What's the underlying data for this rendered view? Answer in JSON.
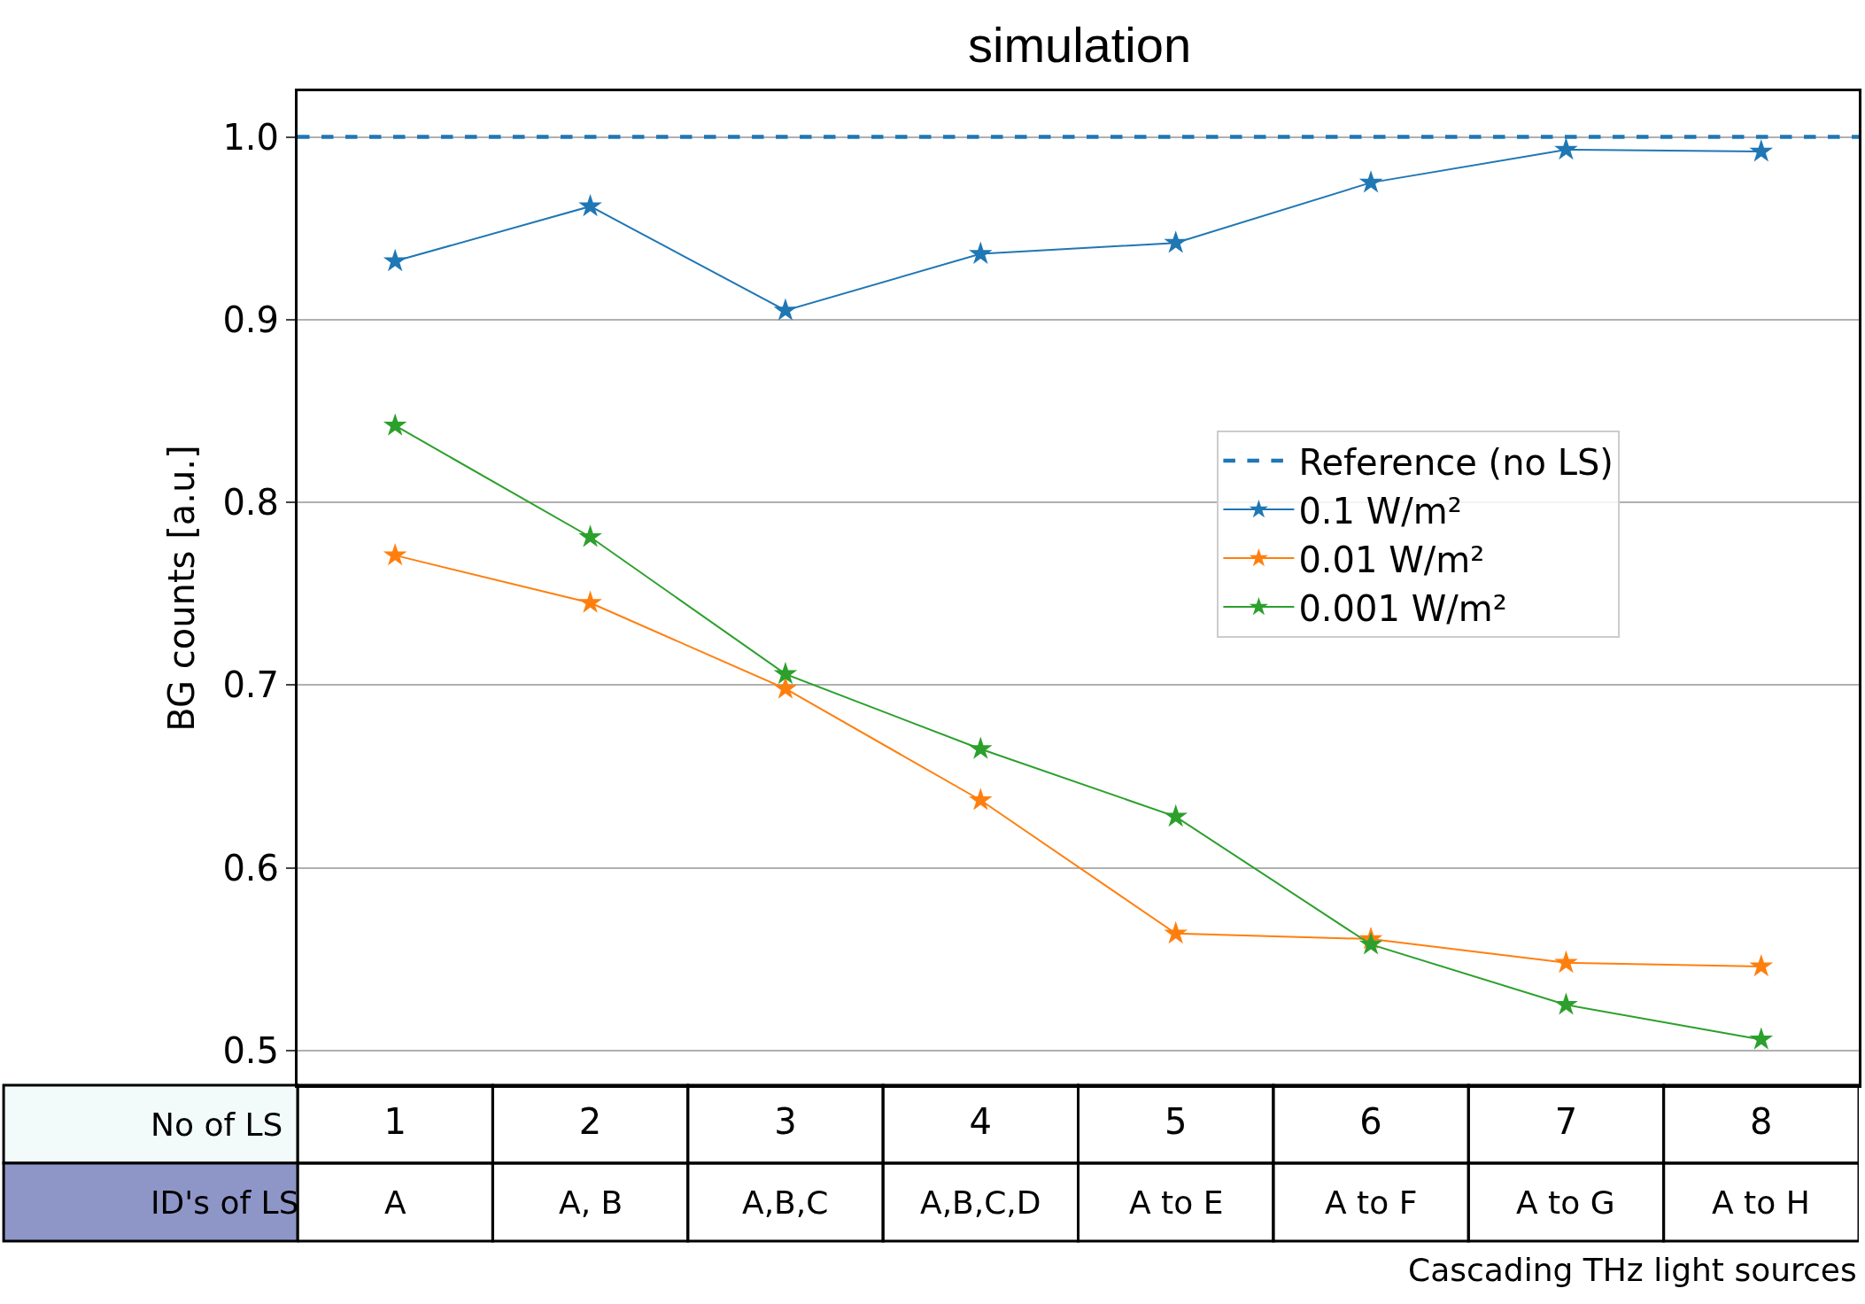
{
  "chart_data": {
    "type": "line",
    "title": "simulation",
    "xlabel": "Cascading THz light sources",
    "ylabel": "BG counts [a.u.]",
    "categories": [
      "1",
      "2",
      "3",
      "4",
      "5",
      "6",
      "7",
      "8"
    ],
    "series": [
      {
        "name": "0.1 W/m²",
        "color": "#1f77b4",
        "values": [
          0.932,
          0.962,
          0.905,
          0.936,
          0.942,
          0.975,
          0.993,
          0.992
        ]
      },
      {
        "name": "0.01 W/m²",
        "color": "#ff7f0e",
        "values": [
          0.771,
          0.745,
          0.698,
          0.637,
          0.564,
          0.561,
          0.548,
          0.546
        ]
      },
      {
        "name": "0.001 W/m²",
        "color": "#2ca02c",
        "values": [
          0.842,
          0.781,
          0.706,
          0.665,
          0.628,
          0.558,
          0.525,
          0.506
        ]
      }
    ],
    "ref_lines": [
      {
        "axis": "y",
        "value": 1.0,
        "label": "Reference (no LS)",
        "color": "#1f77b4",
        "line_style": "dashed"
      }
    ],
    "annotations": [
      "No of LS",
      "ID's of LS",
      "A",
      "A, B",
      "A,B,C",
      "A,B,C,D",
      "A to E",
      "A to F",
      "A to G",
      "A to H"
    ],
    "ylim": [
      0.481,
      1.025
    ],
    "yticks": [
      0.5,
      0.6,
      0.7,
      0.8,
      0.9,
      {
        "value": 1.0,
        "label": "1.0"
      }
    ],
    "grid": "y",
    "legend": "right",
    "marker": "star",
    "line_style": "solid"
  }
}
